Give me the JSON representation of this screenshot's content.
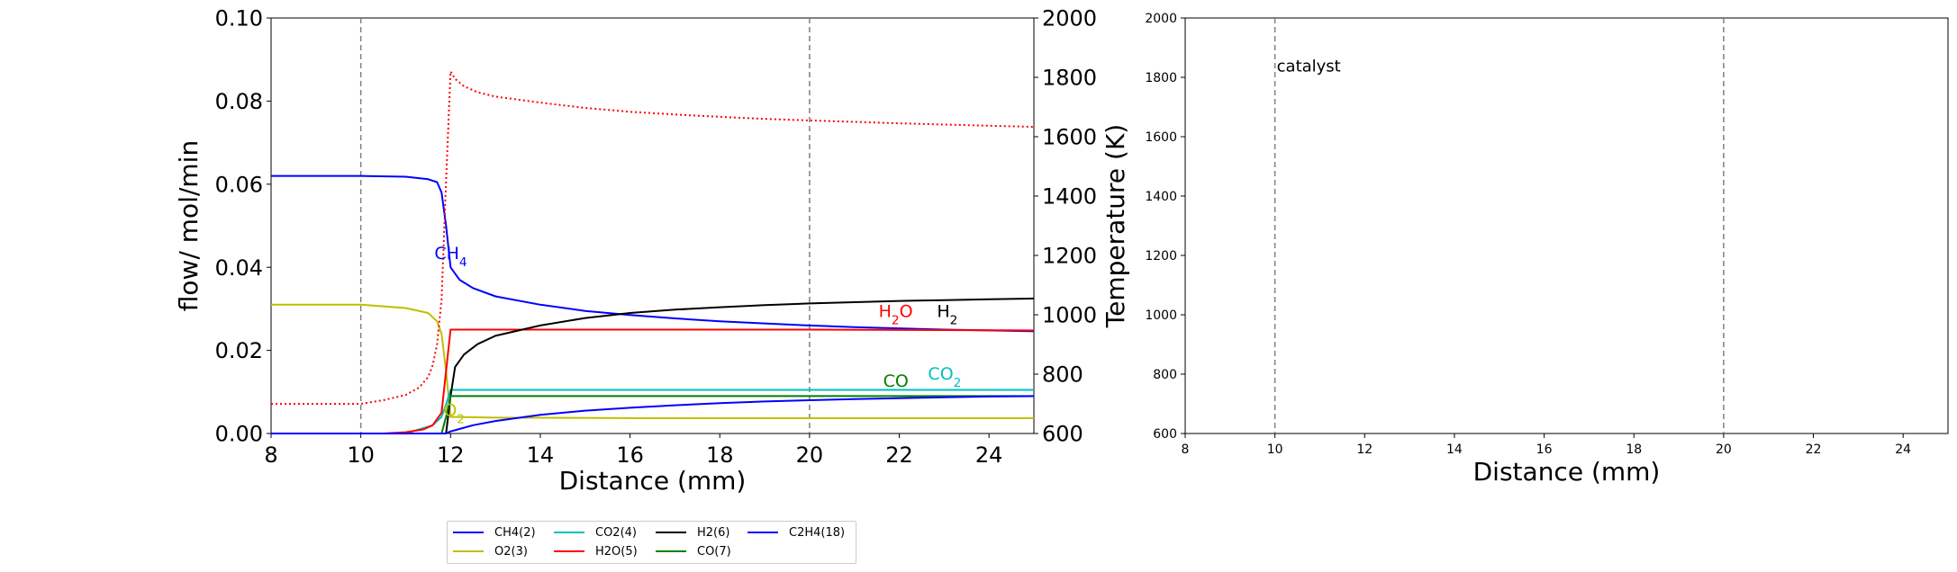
{
  "chart_data": [
    {
      "type": "line",
      "xlabel": "Distance (mm)",
      "ylabel": "flow/ mol/min",
      "y2label": "Temperature (K)",
      "xlim": [
        8,
        25
      ],
      "ylim": [
        0,
        0.1
      ],
      "y2lim": [
        600,
        2000
      ],
      "xticks": [
        "8",
        "10",
        "12",
        "14",
        "16",
        "18",
        "20",
        "22",
        "24"
      ],
      "yticks": [
        "0.00",
        "0.02",
        "0.04",
        "0.06",
        "0.08",
        "0.10"
      ],
      "y2ticks": [
        "600",
        "800",
        "1000",
        "1200",
        "1400",
        "1600",
        "1800",
        "2000"
      ],
      "vlines": [
        10,
        20
      ],
      "series": [
        {
          "name": "CH4(2)",
          "color": "#0000ff",
          "x": [
            8,
            10,
            11,
            11.5,
            11.7,
            11.8,
            11.9,
            12,
            12.2,
            12.5,
            13,
            14,
            15,
            16,
            17,
            18,
            19,
            20,
            21,
            22,
            23,
            24,
            25
          ],
          "y": [
            0.062,
            0.062,
            0.0618,
            0.0612,
            0.0605,
            0.058,
            0.05,
            0.04,
            0.037,
            0.035,
            0.033,
            0.031,
            0.0295,
            0.0285,
            0.0277,
            0.027,
            0.0265,
            0.026,
            0.0256,
            0.0253,
            0.025,
            0.0248,
            0.0246
          ]
        },
        {
          "name": "O2(3)",
          "color": "#bfbf00",
          "x": [
            8,
            10,
            11,
            11.5,
            11.7,
            11.8,
            11.9,
            12,
            13,
            16,
            20,
            25
          ],
          "y": [
            0.031,
            0.031,
            0.0302,
            0.029,
            0.027,
            0.024,
            0.015,
            0.004,
            0.0038,
            0.0037,
            0.0037,
            0.0037
          ]
        },
        {
          "name": "CO2(4)",
          "color": "#00bfbf",
          "x": [
            8,
            11,
            11.6,
            11.8,
            11.9,
            12,
            13,
            25
          ],
          "y": [
            0,
            0,
            0.002,
            0.004,
            0.007,
            0.0105,
            0.0105,
            0.0105
          ]
        },
        {
          "name": "H2O(5)",
          "color": "#ff0000",
          "x": [
            8,
            10.5,
            11,
            11.4,
            11.6,
            11.8,
            11.9,
            12,
            14,
            16,
            20,
            25
          ],
          "y": [
            0,
            0,
            0.0003,
            0.001,
            0.002,
            0.005,
            0.015,
            0.025,
            0.025,
            0.025,
            0.025,
            0.0248
          ]
        },
        {
          "name": "H2(6)",
          "color": "#000000",
          "x": [
            8,
            11.9,
            12,
            12.1,
            12.3,
            12.6,
            13,
            14,
            15,
            16,
            17,
            18,
            19,
            20,
            21,
            22,
            23,
            24,
            25
          ],
          "y": [
            0,
            0,
            0.009,
            0.016,
            0.019,
            0.0215,
            0.0235,
            0.026,
            0.0278,
            0.029,
            0.0298,
            0.0304,
            0.0309,
            0.0313,
            0.0316,
            0.0319,
            0.0321,
            0.0323,
            0.0325
          ]
        },
        {
          "name": "CO(7)",
          "color": "#008000",
          "x": [
            8,
            11.8,
            11.9,
            12,
            13,
            25
          ],
          "y": [
            0,
            0,
            0.004,
            0.009,
            0.009,
            0.009
          ]
        },
        {
          "name": "C2H4(18)",
          "color": "#0000ff",
          "x": [
            8,
            11.9,
            12,
            12.5,
            13,
            14,
            15,
            16,
            17,
            18,
            19,
            20,
            21,
            22,
            23,
            24,
            25
          ],
          "y": [
            0,
            0,
            0.0005,
            0.002,
            0.003,
            0.0045,
            0.0055,
            0.0062,
            0.0068,
            0.0073,
            0.0077,
            0.008,
            0.0083,
            0.0085,
            0.0087,
            0.0089,
            0.009
          ]
        },
        {
          "name": "Temperature",
          "color": "#ff0000",
          "dashed": true,
          "axis": "right",
          "x": [
            8,
            10,
            10.5,
            11,
            11.3,
            11.5,
            11.6,
            11.7,
            11.8,
            11.9,
            12,
            12.1,
            12.3,
            12.6,
            13,
            14,
            15,
            16,
            17,
            18,
            19,
            20,
            21,
            22,
            23,
            24,
            25
          ],
          "y": [
            700,
            700,
            712,
            730,
            755,
            790,
            830,
            900,
            1050,
            1450,
            1820,
            1795,
            1770,
            1750,
            1735,
            1715,
            1697,
            1684,
            1675,
            1667,
            1660,
            1655,
            1650,
            1645,
            1641,
            1637,
            1633
          ]
        }
      ],
      "annotations": [
        {
          "text": "CH",
          "sub": "4",
          "x": 11.6,
          "y": 0.042,
          "color": "#0000ff"
        },
        {
          "text": "H",
          "sub": "2",
          "tail": "O",
          "x": 21.5,
          "y": 0.028,
          "color": "#ff0000"
        },
        {
          "text": "H",
          "sub": "2",
          "x": 22.8,
          "y": 0.028,
          "color": "#000000"
        },
        {
          "text": "CO",
          "x": 21.6,
          "y": 0.0113,
          "color": "#008000"
        },
        {
          "text": "CO",
          "sub": "2",
          "x": 22.6,
          "y": 0.013,
          "color": "#00bfbf"
        },
        {
          "text": "O",
          "sub": "2",
          "x": 11.8,
          "y": 0.0042,
          "color": "#bfbf00"
        }
      ]
    },
    {
      "type": "line",
      "xlabel": "Distance (mm)",
      "ylabel": "",
      "xlim": [
        8,
        25
      ],
      "ylim": [
        600,
        2000
      ],
      "xticks": [
        "8",
        "10",
        "12",
        "14",
        "16",
        "18",
        "20",
        "22",
        "24"
      ],
      "yticks": [
        "600",
        "800",
        "1000",
        "1200",
        "1400",
        "1600",
        "1800",
        "2000"
      ],
      "vlines": [
        10,
        20
      ],
      "annotations": [
        {
          "text": "catalyst",
          "x": 10,
          "y": 1820,
          "color": "#000000"
        }
      ],
      "series": []
    }
  ],
  "legend": {
    "placement": "below",
    "items": [
      {
        "label": "CH4(2)",
        "color": "#0000ff"
      },
      {
        "label": "CO2(4)",
        "color": "#00bfbf"
      },
      {
        "label": "H2(6)",
        "color": "#000000"
      },
      {
        "label": "C2H4(18)",
        "color": "#0000ff"
      },
      {
        "label": "O2(3)",
        "color": "#bfbf00"
      },
      {
        "label": "H2O(5)",
        "color": "#ff0000"
      },
      {
        "label": "CO(7)",
        "color": "#008000"
      }
    ]
  }
}
